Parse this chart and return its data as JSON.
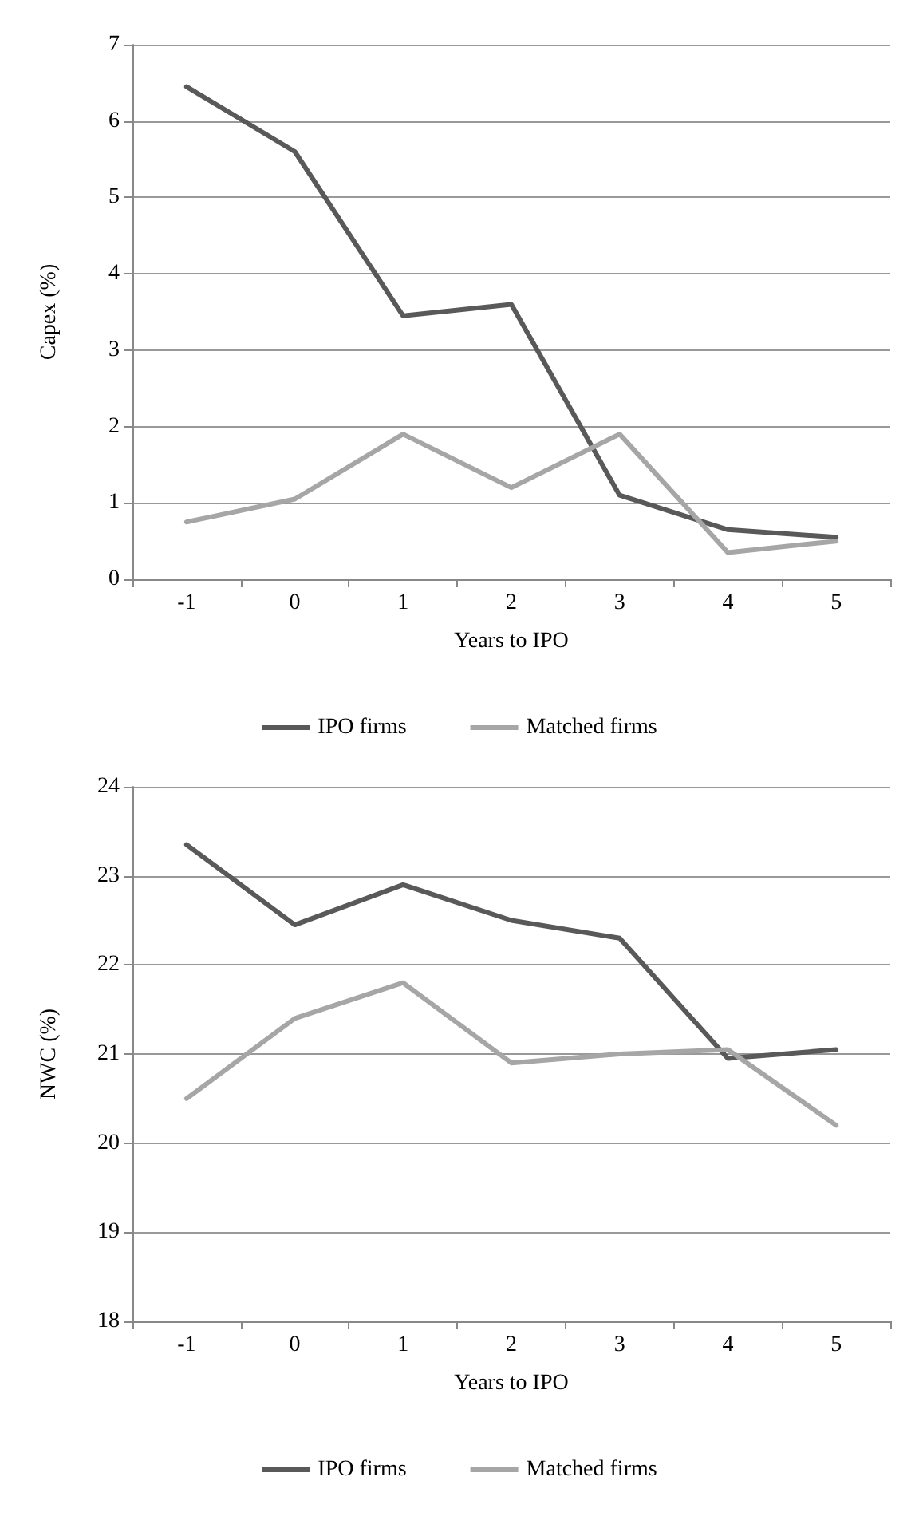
{
  "chart_data": [
    {
      "type": "line",
      "xlabel": "Years to IPO",
      "ylabel": "Capex (%)",
      "categories": [
        "-1",
        "0",
        "1",
        "2",
        "3",
        "4",
        "5"
      ],
      "ylim": [
        0,
        7
      ],
      "yticks": [
        0,
        1,
        2,
        3,
        4,
        5,
        6,
        7
      ],
      "grid": "y",
      "legend": "bottom",
      "marker": "none",
      "line_style": "solid",
      "series": [
        {
          "name": "IPO firms",
          "color": "#595959",
          "values": [
            6.45,
            5.6,
            3.45,
            3.6,
            1.1,
            0.65,
            0.55
          ]
        },
        {
          "name": "Matched firms",
          "color": "#a6a6a6",
          "values": [
            0.75,
            1.05,
            1.9,
            1.2,
            1.9,
            0.35,
            0.5
          ]
        }
      ]
    },
    {
      "type": "line",
      "xlabel": "Years to IPO",
      "ylabel": "NWC (%)",
      "categories": [
        "-1",
        "0",
        "1",
        "2",
        "3",
        "4",
        "5"
      ],
      "ylim": [
        18,
        24
      ],
      "yticks": [
        18,
        19,
        20,
        21,
        22,
        23,
        24
      ],
      "grid": "y",
      "legend": "bottom",
      "marker": "none",
      "line_style": "solid",
      "series": [
        {
          "name": "IPO firms",
          "color": "#595959",
          "values": [
            23.35,
            22.45,
            22.9,
            22.5,
            22.3,
            20.95,
            21.05
          ]
        },
        {
          "name": "Matched firms",
          "color": "#a6a6a6",
          "values": [
            20.5,
            21.4,
            21.8,
            20.9,
            21.0,
            21.05,
            20.2
          ]
        }
      ]
    }
  ]
}
